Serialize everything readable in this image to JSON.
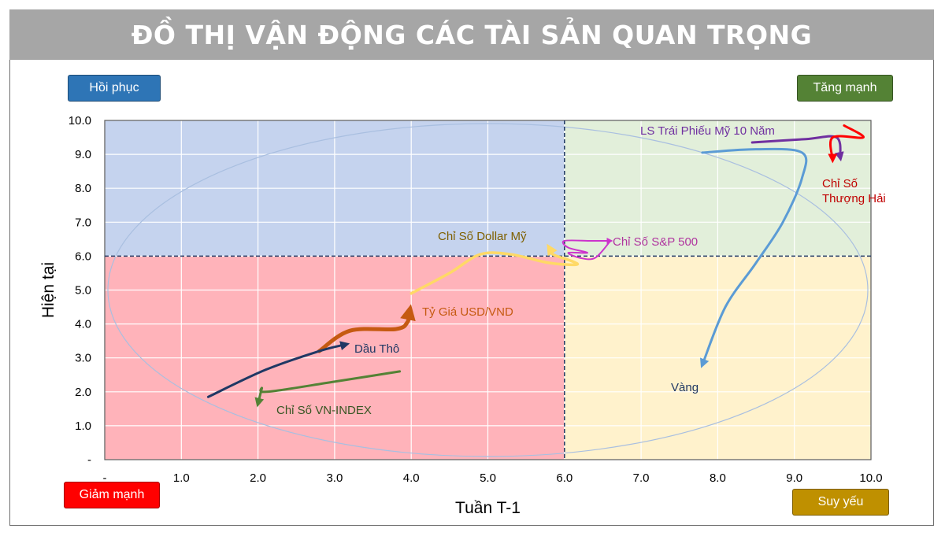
{
  "title": "ĐỒ THỊ VẬN ĐỘNG CÁC TÀI SẢN QUAN TRỌNG",
  "quadrants": {
    "top_left": "Hồi phục",
    "top_right": "Tăng mạnh",
    "bottom_left": "Giảm mạnh",
    "bottom_right": "Suy yếu"
  },
  "colors": {
    "q_recovery": "#c5d3ee",
    "q_strong": "#e2efda",
    "q_fall": "#ffb3ba",
    "q_weak": "#fff2cc"
  },
  "chart_data": {
    "type": "line",
    "title": "ĐỒ THỊ VẬN ĐỘNG CÁC TÀI SẢN QUAN TRỌNG",
    "xlabel": "Tuần T-1",
    "ylabel": "Hiện tại",
    "xlim": [
      0,
      10
    ],
    "ylim": [
      0,
      10
    ],
    "x_ticks": [
      "-",
      "1.0",
      "2.0",
      "3.0",
      "4.0",
      "5.0",
      "6.0",
      "7.0",
      "8.0",
      "9.0",
      "10.0"
    ],
    "y_ticks": [
      "-",
      "1.0",
      "2.0",
      "3.0",
      "4.0",
      "5.0",
      "6.0",
      "7.0",
      "8.0",
      "9.0",
      "10.0"
    ],
    "grid": true,
    "midline": {
      "x": 6,
      "y": 6
    },
    "series": [
      {
        "name": "Vàng",
        "color": "#5b9bd5",
        "points": [
          [
            7.8,
            9.05
          ],
          [
            8.5,
            9.15
          ],
          [
            9.1,
            9.05
          ],
          [
            9.1,
            8.3
          ],
          [
            8.85,
            7.0
          ],
          [
            8.5,
            5.8
          ],
          [
            8.1,
            4.5
          ],
          [
            7.8,
            2.8
          ]
        ]
      },
      {
        "name": "LS Trái Phiếu Mỹ 10 Năm",
        "color": "#7030a0",
        "points": [
          [
            8.45,
            9.35
          ],
          [
            9.15,
            9.45
          ],
          [
            9.55,
            9.5
          ],
          [
            9.6,
            8.9
          ]
        ]
      },
      {
        "name": "Chỉ Số Thượng Hải",
        "color": "#ff0000",
        "points": [
          [
            9.65,
            9.85
          ],
          [
            9.9,
            9.5
          ],
          [
            9.5,
            9.5
          ],
          [
            9.5,
            8.85
          ]
        ]
      },
      {
        "name": "Chỉ Số S&P 500",
        "color": "#cc33cc",
        "points": [
          [
            6.6,
            6.45
          ],
          [
            6.4,
            5.95
          ],
          [
            6.2,
            5.95
          ],
          [
            6.05,
            6.1
          ],
          [
            6.3,
            6.1
          ],
          [
            6.05,
            6.25
          ],
          [
            6.0,
            6.45
          ],
          [
            6.35,
            6.45
          ],
          [
            6.6,
            6.45
          ]
        ]
      },
      {
        "name": "Chỉ Số Dollar Mỹ",
        "color": "#ffd966",
        "points": [
          [
            4.0,
            4.9
          ],
          [
            4.5,
            5.5
          ],
          [
            4.9,
            6.05
          ],
          [
            5.3,
            6.05
          ],
          [
            5.8,
            5.8
          ],
          [
            6.15,
            5.75
          ],
          [
            6.1,
            5.85
          ],
          [
            5.85,
            6.05
          ],
          [
            5.8,
            6.25
          ]
        ]
      },
      {
        "name": "Tỷ Giá USD/VND",
        "color": "#c55a11",
        "points": [
          [
            2.8,
            3.2
          ],
          [
            3.2,
            3.8
          ],
          [
            3.8,
            3.85
          ],
          [
            3.95,
            4.05
          ],
          [
            3.98,
            4.4
          ]
        ]
      },
      {
        "name": "Dầu Thô",
        "color": "#1f3864",
        "points": [
          [
            1.35,
            1.85
          ],
          [
            2.1,
            2.65
          ],
          [
            2.8,
            3.2
          ],
          [
            3.15,
            3.4
          ]
        ]
      },
      {
        "name": "Chỉ Số VN-INDEX",
        "color": "#548235",
        "points": [
          [
            3.85,
            2.6
          ],
          [
            3.0,
            2.3
          ],
          [
            2.3,
            2.05
          ],
          [
            2.05,
            2.0
          ],
          [
            2.05,
            2.1
          ],
          [
            2.0,
            1.65
          ]
        ]
      }
    ]
  }
}
